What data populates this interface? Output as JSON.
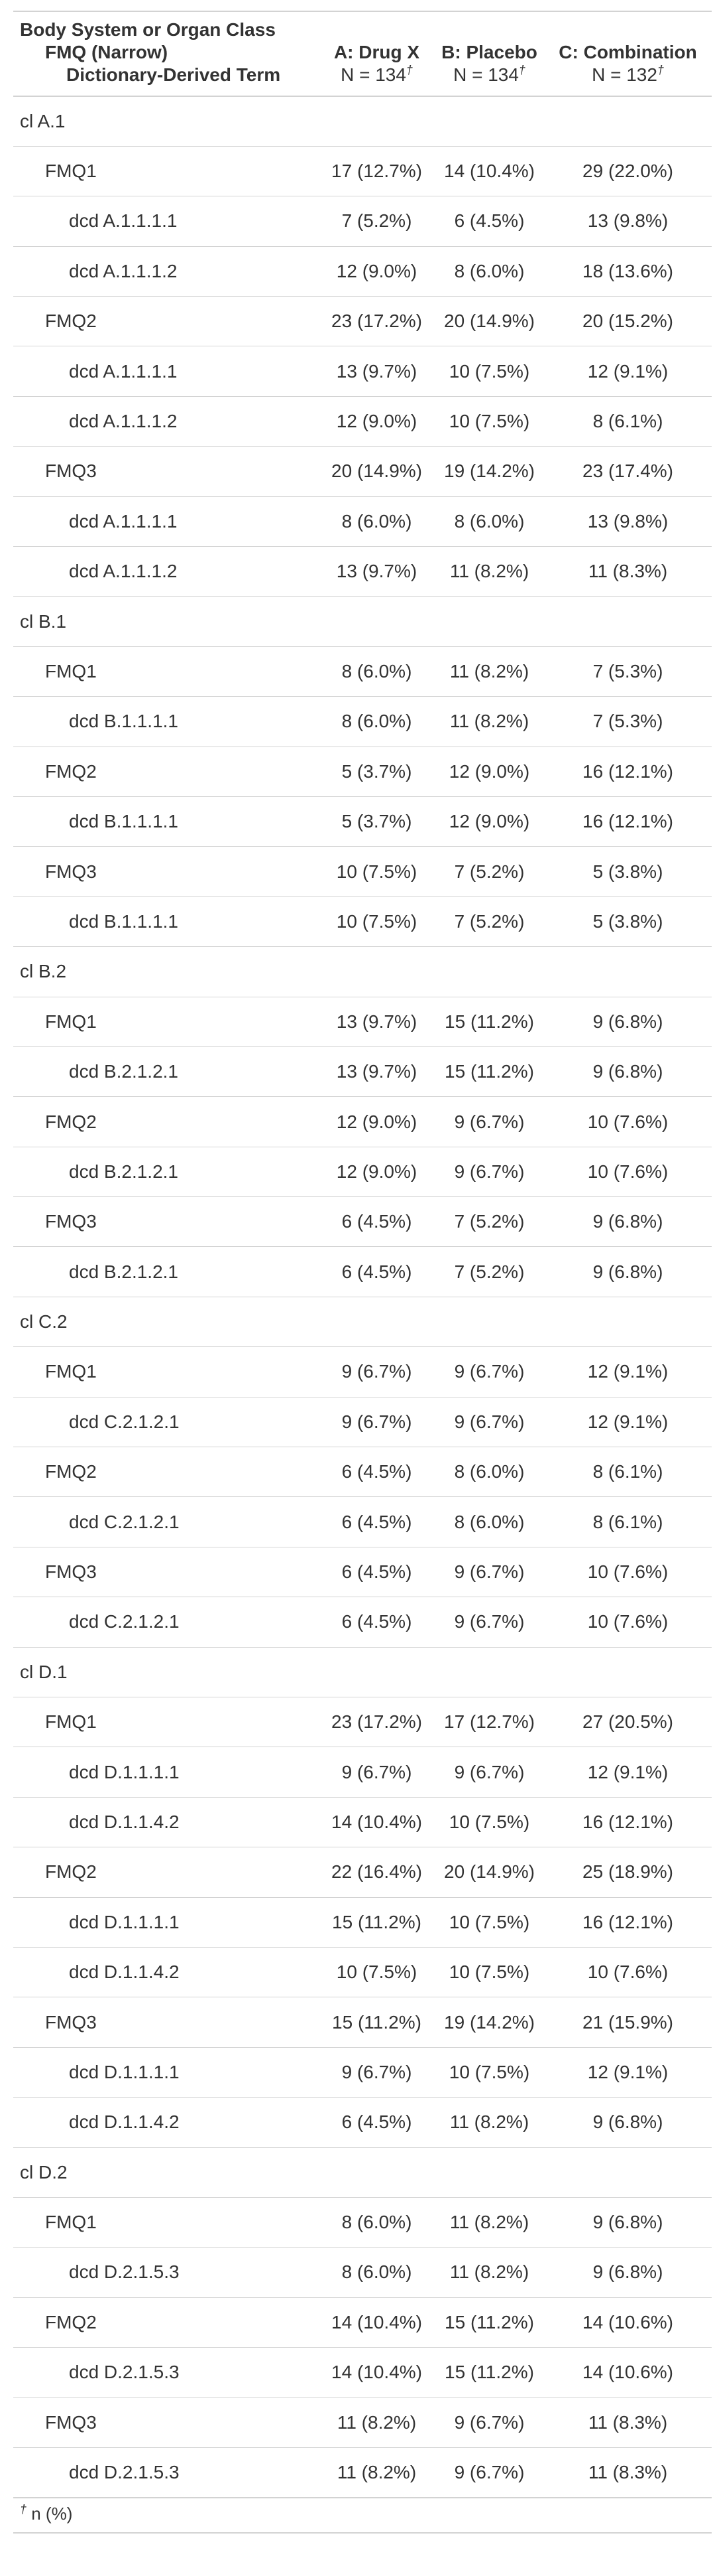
{
  "header": {
    "stub_lines": [
      "Body System or Organ Class",
      "FMQ (Narrow)",
      "Dictionary-Derived Term"
    ],
    "columns": [
      {
        "label": "A: Drug X",
        "n_text": "N = 134",
        "mark": "†"
      },
      {
        "label": "B: Placebo",
        "n_text": "N = 134",
        "mark": "†"
      },
      {
        "label": "C: Combination",
        "n_text": "N = 132",
        "mark": "†"
      }
    ]
  },
  "rows": [
    {
      "level": 0,
      "label": "cl A.1",
      "values": [
        "",
        "",
        ""
      ]
    },
    {
      "level": 1,
      "label": "FMQ1",
      "values": [
        "17 (12.7%)",
        "14 (10.4%)",
        "29 (22.0%)"
      ]
    },
    {
      "level": 2,
      "label": "dcd A.1.1.1.1",
      "values": [
        "7 (5.2%)",
        "6 (4.5%)",
        "13 (9.8%)"
      ]
    },
    {
      "level": 2,
      "label": "dcd A.1.1.1.2",
      "values": [
        "12 (9.0%)",
        "8 (6.0%)",
        "18 (13.6%)"
      ]
    },
    {
      "level": 1,
      "label": "FMQ2",
      "values": [
        "23 (17.2%)",
        "20 (14.9%)",
        "20 (15.2%)"
      ]
    },
    {
      "level": 2,
      "label": "dcd A.1.1.1.1",
      "values": [
        "13 (9.7%)",
        "10 (7.5%)",
        "12 (9.1%)"
      ]
    },
    {
      "level": 2,
      "label": "dcd A.1.1.1.2",
      "values": [
        "12 (9.0%)",
        "10 (7.5%)",
        "8 (6.1%)"
      ]
    },
    {
      "level": 1,
      "label": "FMQ3",
      "values": [
        "20 (14.9%)",
        "19 (14.2%)",
        "23 (17.4%)"
      ]
    },
    {
      "level": 2,
      "label": "dcd A.1.1.1.1",
      "values": [
        "8 (6.0%)",
        "8 (6.0%)",
        "13 (9.8%)"
      ]
    },
    {
      "level": 2,
      "label": "dcd A.1.1.1.2",
      "values": [
        "13 (9.7%)",
        "11 (8.2%)",
        "11 (8.3%)"
      ]
    },
    {
      "level": 0,
      "label": "cl B.1",
      "values": [
        "",
        "",
        ""
      ]
    },
    {
      "level": 1,
      "label": "FMQ1",
      "values": [
        "8 (6.0%)",
        "11 (8.2%)",
        "7 (5.3%)"
      ]
    },
    {
      "level": 2,
      "label": "dcd B.1.1.1.1",
      "values": [
        "8 (6.0%)",
        "11 (8.2%)",
        "7 (5.3%)"
      ]
    },
    {
      "level": 1,
      "label": "FMQ2",
      "values": [
        "5 (3.7%)",
        "12 (9.0%)",
        "16 (12.1%)"
      ]
    },
    {
      "level": 2,
      "label": "dcd B.1.1.1.1",
      "values": [
        "5 (3.7%)",
        "12 (9.0%)",
        "16 (12.1%)"
      ]
    },
    {
      "level": 1,
      "label": "FMQ3",
      "values": [
        "10 (7.5%)",
        "7 (5.2%)",
        "5 (3.8%)"
      ]
    },
    {
      "level": 2,
      "label": "dcd B.1.1.1.1",
      "values": [
        "10 (7.5%)",
        "7 (5.2%)",
        "5 (3.8%)"
      ]
    },
    {
      "level": 0,
      "label": "cl B.2",
      "values": [
        "",
        "",
        ""
      ]
    },
    {
      "level": 1,
      "label": "FMQ1",
      "values": [
        "13 (9.7%)",
        "15 (11.2%)",
        "9 (6.8%)"
      ]
    },
    {
      "level": 2,
      "label": "dcd B.2.1.2.1",
      "values": [
        "13 (9.7%)",
        "15 (11.2%)",
        "9 (6.8%)"
      ]
    },
    {
      "level": 1,
      "label": "FMQ2",
      "values": [
        "12 (9.0%)",
        "9 (6.7%)",
        "10 (7.6%)"
      ]
    },
    {
      "level": 2,
      "label": "dcd B.2.1.2.1",
      "values": [
        "12 (9.0%)",
        "9 (6.7%)",
        "10 (7.6%)"
      ]
    },
    {
      "level": 1,
      "label": "FMQ3",
      "values": [
        "6 (4.5%)",
        "7 (5.2%)",
        "9 (6.8%)"
      ]
    },
    {
      "level": 2,
      "label": "dcd B.2.1.2.1",
      "values": [
        "6 (4.5%)",
        "7 (5.2%)",
        "9 (6.8%)"
      ]
    },
    {
      "level": 0,
      "label": "cl C.2",
      "values": [
        "",
        "",
        ""
      ]
    },
    {
      "level": 1,
      "label": "FMQ1",
      "values": [
        "9 (6.7%)",
        "9 (6.7%)",
        "12 (9.1%)"
      ]
    },
    {
      "level": 2,
      "label": "dcd C.2.1.2.1",
      "values": [
        "9 (6.7%)",
        "9 (6.7%)",
        "12 (9.1%)"
      ]
    },
    {
      "level": 1,
      "label": "FMQ2",
      "values": [
        "6 (4.5%)",
        "8 (6.0%)",
        "8 (6.1%)"
      ]
    },
    {
      "level": 2,
      "label": "dcd C.2.1.2.1",
      "values": [
        "6 (4.5%)",
        "8 (6.0%)",
        "8 (6.1%)"
      ]
    },
    {
      "level": 1,
      "label": "FMQ3",
      "values": [
        "6 (4.5%)",
        "9 (6.7%)",
        "10 (7.6%)"
      ]
    },
    {
      "level": 2,
      "label": "dcd C.2.1.2.1",
      "values": [
        "6 (4.5%)",
        "9 (6.7%)",
        "10 (7.6%)"
      ]
    },
    {
      "level": 0,
      "label": "cl D.1",
      "values": [
        "",
        "",
        ""
      ]
    },
    {
      "level": 1,
      "label": "FMQ1",
      "values": [
        "23 (17.2%)",
        "17 (12.7%)",
        "27 (20.5%)"
      ]
    },
    {
      "level": 2,
      "label": "dcd D.1.1.1.1",
      "values": [
        "9 (6.7%)",
        "9 (6.7%)",
        "12 (9.1%)"
      ]
    },
    {
      "level": 2,
      "label": "dcd D.1.1.4.2",
      "values": [
        "14 (10.4%)",
        "10 (7.5%)",
        "16 (12.1%)"
      ]
    },
    {
      "level": 1,
      "label": "FMQ2",
      "values": [
        "22 (16.4%)",
        "20 (14.9%)",
        "25 (18.9%)"
      ]
    },
    {
      "level": 2,
      "label": "dcd D.1.1.1.1",
      "values": [
        "15 (11.2%)",
        "10 (7.5%)",
        "16 (12.1%)"
      ]
    },
    {
      "level": 2,
      "label": "dcd D.1.1.4.2",
      "values": [
        "10 (7.5%)",
        "10 (7.5%)",
        "10 (7.6%)"
      ]
    },
    {
      "level": 1,
      "label": "FMQ3",
      "values": [
        "15 (11.2%)",
        "19 (14.2%)",
        "21 (15.9%)"
      ]
    },
    {
      "level": 2,
      "label": "dcd D.1.1.1.1",
      "values": [
        "9 (6.7%)",
        "10 (7.5%)",
        "12 (9.1%)"
      ]
    },
    {
      "level": 2,
      "label": "dcd D.1.1.4.2",
      "values": [
        "6 (4.5%)",
        "11 (8.2%)",
        "9 (6.8%)"
      ]
    },
    {
      "level": 0,
      "label": "cl D.2",
      "values": [
        "",
        "",
        ""
      ]
    },
    {
      "level": 1,
      "label": "FMQ1",
      "values": [
        "8 (6.0%)",
        "11 (8.2%)",
        "9 (6.8%)"
      ]
    },
    {
      "level": 2,
      "label": "dcd D.2.1.5.3",
      "values": [
        "8 (6.0%)",
        "11 (8.2%)",
        "9 (6.8%)"
      ]
    },
    {
      "level": 1,
      "label": "FMQ2",
      "values": [
        "14 (10.4%)",
        "15 (11.2%)",
        "14 (10.6%)"
      ]
    },
    {
      "level": 2,
      "label": "dcd D.2.1.5.3",
      "values": [
        "14 (10.4%)",
        "15 (11.2%)",
        "14 (10.6%)"
      ]
    },
    {
      "level": 1,
      "label": "FMQ3",
      "values": [
        "11 (8.2%)",
        "9 (6.7%)",
        "11 (8.3%)"
      ]
    },
    {
      "level": 2,
      "label": "dcd D.2.1.5.3",
      "values": [
        "11 (8.2%)",
        "9 (6.7%)",
        "11 (8.3%)"
      ]
    }
  ],
  "footnote": {
    "mark": "†",
    "text": "n (%)"
  }
}
